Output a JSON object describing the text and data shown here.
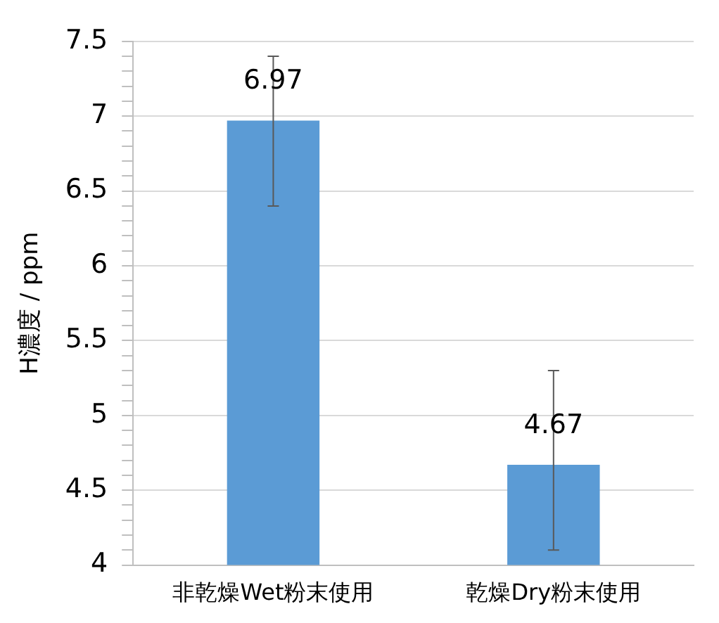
{
  "chart_data": {
    "type": "bar",
    "ylabel": "H濃度 / ppm",
    "categories": [
      "非乾燥Wet粉末使用",
      "乾燥Dry粉末使用"
    ],
    "values": [
      6.97,
      4.67
    ],
    "color": "#5b9bd5",
    "errors": [
      [
        6.4,
        7.4
      ],
      [
        4.1,
        5.3
      ]
    ],
    "data_labels": true,
    "ylim": [
      4,
      7.5
    ],
    "yticks": [
      4,
      {
        "value": 4.1,
        "label": null
      },
      {
        "value": 4.2,
        "label": null
      },
      {
        "value": 4.3,
        "label": null
      },
      {
        "value": 4.4,
        "label": null
      },
      4.5,
      {
        "value": 4.6,
        "label": null
      },
      {
        "value": 4.7,
        "label": null
      },
      {
        "value": 4.8,
        "label": null
      },
      {
        "value": 4.9,
        "label": null
      },
      5,
      {
        "value": 5.1,
        "label": null
      },
      {
        "value": 5.2,
        "label": null
      },
      {
        "value": 5.3,
        "label": null
      },
      {
        "value": 5.4,
        "label": null
      },
      5.5,
      {
        "value": 5.6,
        "label": null
      },
      {
        "value": 5.7,
        "label": null
      },
      {
        "value": 5.8,
        "label": null
      },
      {
        "value": 5.9,
        "label": null
      },
      6,
      {
        "value": 6.1,
        "label": null
      },
      {
        "value": 6.2,
        "label": null
      },
      {
        "value": 6.3,
        "label": null
      },
      {
        "value": 6.4,
        "label": null
      },
      6.5,
      {
        "value": 6.6,
        "label": null
      },
      {
        "value": 6.7,
        "label": null
      },
      {
        "value": 6.8,
        "label": null
      },
      {
        "value": 6.9,
        "label": null
      },
      7,
      {
        "value": 7.1,
        "label": null
      },
      {
        "value": 7.2,
        "label": null
      },
      {
        "value": 7.3,
        "label": null
      },
      {
        "value": 7.4,
        "label": null
      },
      7.5
    ],
    "grid": "y"
  }
}
